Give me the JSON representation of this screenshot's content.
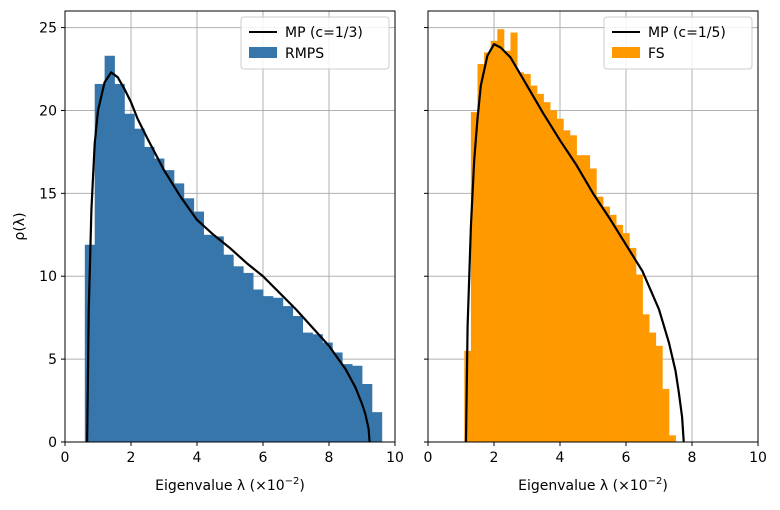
{
  "chart_data": [
    {
      "type": "bar",
      "xlabel_prefix": "Eigenvalue λ (×10",
      "xlabel_exp": "−2",
      "xlabel_suffix": ")",
      "ylabel": "ρ(λ)",
      "xlim": [
        0,
        10
      ],
      "ylim": [
        0,
        26
      ],
      "xticks": [
        "0",
        "2",
        "4",
        "6",
        "8",
        "10"
      ],
      "yticks": [
        "0",
        "5",
        "10",
        "15",
        "20",
        "25"
      ],
      "grid": true,
      "legend_position": "top-right",
      "bin_width": 0.3,
      "hist": {
        "name": "RMPS",
        "color": "#3776ab",
        "bin_left": [
          0.6,
          0.9,
          1.2,
          1.5,
          1.8,
          2.1,
          2.4,
          2.7,
          3.0,
          3.3,
          3.6,
          3.9,
          4.2,
          4.5,
          4.8,
          5.1,
          5.4,
          5.7,
          6.0,
          6.3,
          6.6,
          6.9,
          7.2,
          7.5,
          7.8,
          8.1,
          8.4,
          8.7,
          9.0,
          9.3
        ],
        "values": [
          11.9,
          21.6,
          23.3,
          21.6,
          19.8,
          18.9,
          17.8,
          17.1,
          16.4,
          15.6,
          14.7,
          13.9,
          12.5,
          12.4,
          11.3,
          10.6,
          10.2,
          9.2,
          8.8,
          8.7,
          8.2,
          7.6,
          6.6,
          6.5,
          6.0,
          5.4,
          4.7,
          4.6,
          3.5,
          1.8
        ]
      },
      "curve": {
        "name": "MP (c=1/3)",
        "color": "#000000",
        "x": [
          0.67,
          0.72,
          0.8,
          0.9,
          1.0,
          1.2,
          1.4,
          1.6,
          1.8,
          2.0,
          2.2,
          2.5,
          3.0,
          3.5,
          4.0,
          4.5,
          5.0,
          5.5,
          6.0,
          6.5,
          7.0,
          7.5,
          8.0,
          8.5,
          8.8,
          9.0,
          9.1,
          9.2,
          9.23
        ],
        "y": [
          0,
          8,
          14,
          18,
          20,
          21.7,
          22.3,
          22.0,
          21.3,
          20.5,
          19.5,
          18.3,
          16.4,
          14.8,
          13.4,
          12.5,
          11.7,
          10.8,
          10.0,
          9.0,
          8.0,
          6.9,
          5.8,
          4.4,
          3.3,
          2.3,
          1.7,
          0.8,
          0
        ]
      }
    },
    {
      "type": "bar",
      "xlabel_prefix": "Eigenvalue λ (×10",
      "xlabel_exp": "−2",
      "xlabel_suffix": ")",
      "xlim": [
        0,
        10
      ],
      "ylim": [
        0,
        26
      ],
      "xticks": [
        "0",
        "2",
        "4",
        "6",
        "8",
        "10"
      ],
      "grid": true,
      "legend_position": "top-right",
      "bin_width": 0.2,
      "hist": {
        "name": "FS",
        "color": "#ff9900",
        "bin_left": [
          1.1,
          1.3,
          1.5,
          1.7,
          1.9,
          2.1,
          2.3,
          2.5,
          2.7,
          2.9,
          3.1,
          3.3,
          3.5,
          3.7,
          3.9,
          4.1,
          4.3,
          4.5,
          4.7,
          4.9,
          5.1,
          5.3,
          5.5,
          5.7,
          5.9,
          6.1,
          6.3,
          6.5,
          6.7,
          6.9,
          7.1,
          7.3
        ],
        "values": [
          5.5,
          19.9,
          22.8,
          23.5,
          24.2,
          24.9,
          23.6,
          24.7,
          22.3,
          22.2,
          21.5,
          21.0,
          20.5,
          20.0,
          19.5,
          18.8,
          18.5,
          17.3,
          17.3,
          16.5,
          14.8,
          14.2,
          13.7,
          13.1,
          12.6,
          11.7,
          10.1,
          7.7,
          6.6,
          5.8,
          3.2,
          0.4
        ]
      },
      "curve": {
        "name": "MP (c=1/5)",
        "color": "#000000",
        "x": [
          1.15,
          1.2,
          1.3,
          1.4,
          1.5,
          1.6,
          1.8,
          2.0,
          2.2,
          2.5,
          3.0,
          3.5,
          4.0,
          4.5,
          5.0,
          5.5,
          6.0,
          6.5,
          7.0,
          7.3,
          7.5,
          7.6,
          7.7,
          7.75
        ],
        "y": [
          0,
          7,
          13,
          17,
          19.5,
          21.5,
          23.3,
          24.0,
          23.8,
          23.2,
          21.5,
          19.8,
          18.2,
          16.7,
          15.0,
          13.5,
          11.9,
          10.3,
          8.0,
          6.0,
          4.3,
          3.0,
          1.5,
          0
        ]
      }
    }
  ]
}
